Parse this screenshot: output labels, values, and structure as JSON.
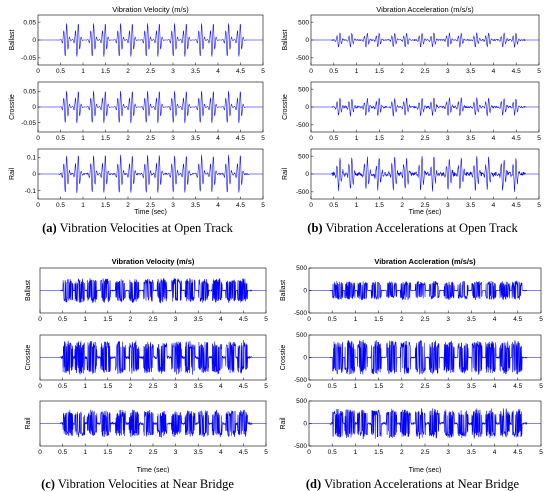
{
  "colors": {
    "signal": "#0000ff",
    "axis": "#000000",
    "background": "#ffffff"
  },
  "chart_data": [
    {
      "id": "a",
      "type": "line",
      "title": "Vibration Velocity (m/s)",
      "title_bold": false,
      "caption": {
        "letter": "(a)",
        "text": " Vibration Velocities at Open Track"
      },
      "xlabel": "Time (sec)",
      "xlim": [
        0,
        5
      ],
      "xticks": [
        "0",
        "0.5",
        "1",
        "1.5",
        "2",
        "2.5",
        "3",
        "3.5",
        "4",
        "4.5",
        "5"
      ],
      "grid": false,
      "legend": "none",
      "series": [
        {
          "name": "Ballast",
          "yticks": [
            "0.05",
            "0",
            "-0.05"
          ],
          "ylim": [
            -0.07,
            0.07
          ],
          "peak": 0.05,
          "style": "wheel",
          "noise": 0.0
        },
        {
          "name": "Crosstie",
          "yticks": [
            "0.05",
            "0",
            "-0.05"
          ],
          "ylim": [
            -0.08,
            0.08
          ],
          "peak": 0.055,
          "style": "wheel",
          "noise": 0.0
        },
        {
          "name": "Rail",
          "yticks": [
            "0.1",
            "0",
            "-0.1"
          ],
          "ylim": [
            -0.15,
            0.15
          ],
          "peak": 0.12,
          "style": "wheel",
          "noise": 0.004
        }
      ]
    },
    {
      "id": "b",
      "type": "line",
      "title": "Vibration Acceleration (m/s/s)",
      "title_bold": false,
      "caption": {
        "letter": "(b)",
        "text": " Vibration Accelerations at Open Track"
      },
      "xlabel": "Time (sec)",
      "xlim": [
        0,
        5
      ],
      "xticks": [
        "0",
        "0.5",
        "1",
        "1.5",
        "2",
        "2.5",
        "3",
        "3.5",
        "4",
        "4.5",
        "5"
      ],
      "grid": false,
      "legend": "none",
      "series": [
        {
          "name": "Ballast",
          "yticks": [
            "500",
            "0",
            "-500"
          ],
          "ylim": [
            -700,
            700
          ],
          "peak": 210,
          "style": "wheel",
          "noise": 15
        },
        {
          "name": "Crosstie",
          "yticks": [
            "500",
            "0",
            "-500"
          ],
          "ylim": [
            -700,
            700
          ],
          "peak": 260,
          "style": "wheel",
          "noise": 25
        },
        {
          "name": "Rail",
          "yticks": [
            "500",
            "0",
            "-500"
          ],
          "ylim": [
            -700,
            700
          ],
          "peak": 480,
          "style": "wheel",
          "noise": 60
        }
      ]
    },
    {
      "id": "c",
      "type": "line",
      "title": "Vibration Velocity (m/s)",
      "title_bold": true,
      "caption": {
        "letter": "(c)",
        "text": " Vibration Velocities at Near Bridge"
      },
      "xlabel": "Time (sec)",
      "xlim": [
        0,
        5
      ],
      "xticks": [
        "0",
        "0.5",
        "1",
        "1.5",
        "2",
        "2.5",
        "3",
        "3.5",
        "4",
        "4.5",
        "5"
      ],
      "grid": false,
      "legend": "none",
      "series": [
        {
          "name": "Ballast",
          "yticks": [],
          "ylim": [
            -1,
            1
          ],
          "peak": 0.55,
          "style": "dense",
          "noise": 0.02
        },
        {
          "name": "Crosstie",
          "yticks": [],
          "ylim": [
            -1,
            1
          ],
          "peak": 0.75,
          "style": "dense",
          "noise": 0.06
        },
        {
          "name": "Rail",
          "yticks": [],
          "ylim": [
            -1,
            1
          ],
          "peak": 0.6,
          "style": "dense",
          "noise": 0.05
        }
      ]
    },
    {
      "id": "d",
      "type": "line",
      "title": "Vibration Accleration (m/s/s)",
      "title_bold": true,
      "caption": {
        "letter": "(d)",
        "text": " Vibration Accelerations at Near Bridge"
      },
      "xlabel": "Time (sec)",
      "xlim": [
        0,
        5
      ],
      "xticks": [
        "0",
        "0.5",
        "1",
        "1.5",
        "2",
        "2.5",
        "3",
        "3.5",
        "4",
        "4.5",
        "5"
      ],
      "grid": false,
      "legend": "none",
      "series": [
        {
          "name": "Ballast",
          "yticks": [
            "500",
            "0",
            "-500"
          ],
          "ylim": [
            -500,
            500
          ],
          "peak": 210,
          "style": "dense",
          "noise": 8
        },
        {
          "name": "Crosstie",
          "yticks": [
            "500",
            "0",
            "-500"
          ],
          "ylim": [
            -500,
            500
          ],
          "peak": 390,
          "style": "dense",
          "noise": 10
        },
        {
          "name": "Rail",
          "yticks": [
            "500",
            "0",
            "-500"
          ],
          "ylim": [
            -500,
            500
          ],
          "peak": 330,
          "style": "dense",
          "noise": 25
        }
      ]
    }
  ]
}
